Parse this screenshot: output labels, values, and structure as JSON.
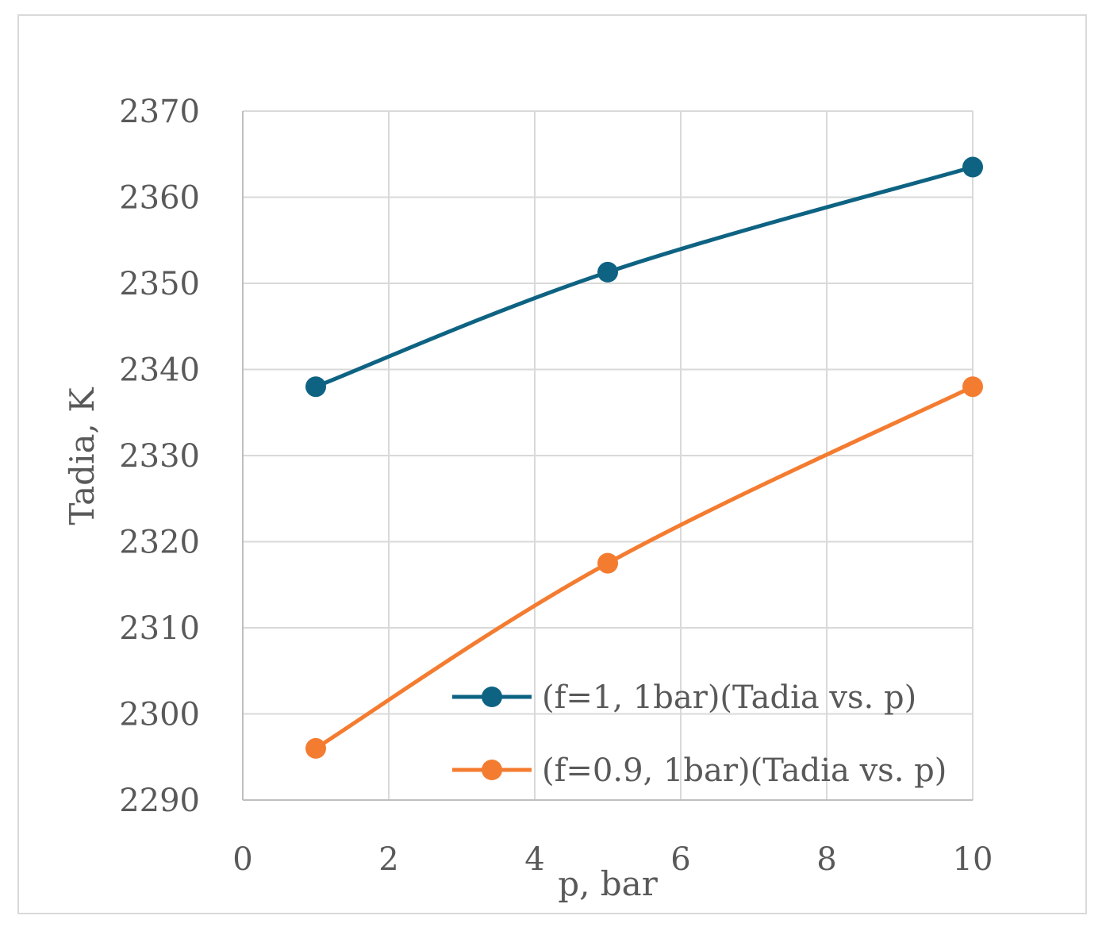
{
  "chart_data": {
    "type": "line",
    "title": "",
    "xlabel": "p, bar",
    "ylabel": "Tadia, K",
    "xlim": [
      0,
      10
    ],
    "ylim": [
      2290,
      2370
    ],
    "x_ticks": [
      "0",
      "2",
      "4",
      "6",
      "8",
      "10"
    ],
    "y_ticks": [
      "2290",
      "2300",
      "2310",
      "2320",
      "2330",
      "2340",
      "2350",
      "2360",
      "2370"
    ],
    "grid": true,
    "legend_position": "bottom-right",
    "series": [
      {
        "name": "(f=1, 1bar)(Tadia vs. p)",
        "color": "#0e6383",
        "x": [
          1,
          5,
          10
        ],
        "y": [
          2338,
          2351.3,
          2363.5
        ]
      },
      {
        "name": "(f=0.9, 1bar)(Tadia vs. p)",
        "color": "#f47c30",
        "x": [
          1,
          5,
          10
        ],
        "y": [
          2296,
          2317.5,
          2338
        ]
      }
    ]
  }
}
